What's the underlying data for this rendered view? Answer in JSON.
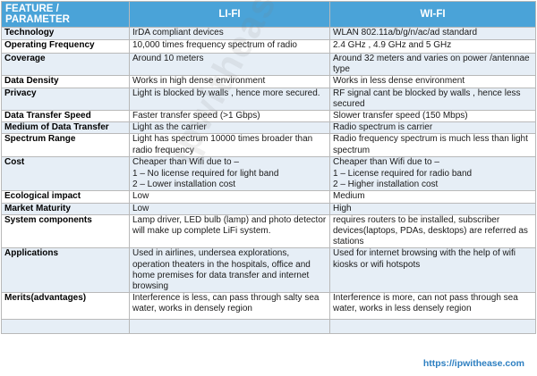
{
  "table": {
    "headers": [
      "FEATURE / PARAMETER",
      "LI-FI",
      "WI-FI"
    ],
    "rows": [
      {
        "param": "Technology",
        "lifi": "IrDA compliant devices",
        "wifi": "WLAN 802.11a/b/g/n/ac/ad standard"
      },
      {
        "param": "Operating Frequency",
        "lifi": "10,000 times frequency spectrum of radio",
        "wifi": "2.4 GHz , 4.9 GHz and 5 GHz"
      },
      {
        "param": "Coverage",
        "lifi": "Around 10 meters",
        "wifi": "Around 32 meters and varies on power /antennae type"
      },
      {
        "param": "Data Density",
        "lifi": "Works in high dense environment",
        "wifi": "Works in less dense environment"
      },
      {
        "param": "Privacy",
        "lifi": "Light is blocked by walls , hence more secured.",
        "wifi": "RF signal cant be blocked by walls , hence less secured"
      },
      {
        "param": "Data Transfer Speed",
        "lifi": "Faster transfer speed (>1 Gbps)",
        "wifi": "Slower transfer speed (150 Mbps)"
      },
      {
        "param": "Medium of Data Transfer",
        "lifi": "Light as the carrier",
        "wifi": "Radio spectrum is carrier"
      },
      {
        "param": "Spectrum Range",
        "lifi": "Light has spectrum 10000 times broader than radio frequency",
        "wifi": "Radio frequency spectrum is much less than light spectrum"
      },
      {
        "param": "Cost",
        "lifi": "Cheaper than Wifi due to –\n1 – No license required for light band\n2 – Lower installation cost",
        "wifi": "Cheaper than Wifi due to –\n1 – License required for radio band\n2 – Higher installation cost"
      },
      {
        "param": "Ecological impact",
        "lifi": "Low",
        "wifi": "Medium"
      },
      {
        "param": "Market Maturity",
        "lifi": "Low",
        "wifi": "High"
      },
      {
        "param": "System components",
        "lifi": "Lamp driver, LED bulb (lamp) and photo detector will make up complete LiFi system.",
        "wifi": "requires routers to be installed, subscriber devices(laptops, PDAs, desktops) are referred as stations"
      },
      {
        "param": "Applications",
        "lifi": "Used in airlines, undersea explorations, operation theaters in the hospitals, office and home premises for data transfer and internet browsing",
        "wifi": "Used for internet browsing with the help of wifi kiosks or wifi hotspots"
      },
      {
        "param": "Merits(advantages)",
        "lifi": "Interference is less, can pass through salty sea water, works in densely region",
        "wifi": "Interference is more, can not pass through sea water, works in less densely region"
      },
      {
        "param": "",
        "lifi": "",
        "wifi": ""
      }
    ]
  },
  "watermark": "ipwithease.com",
  "footer_url": "https://ipwithease.com"
}
